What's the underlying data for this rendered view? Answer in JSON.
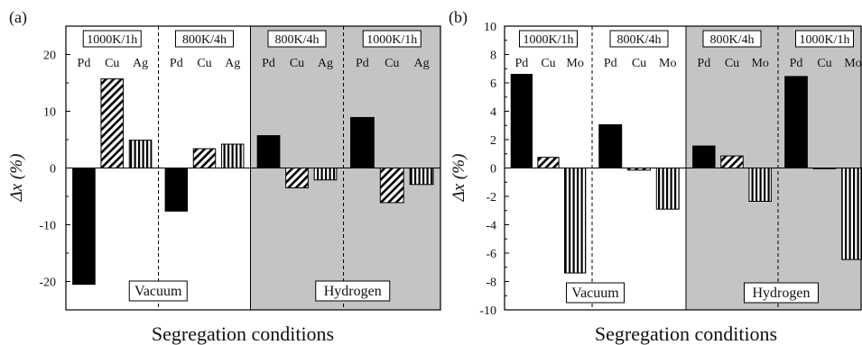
{
  "colors": {
    "hydrogen_shade": "#c4c4c4",
    "bar_fill": "#000000",
    "frame": "#000000"
  },
  "chart_data": [
    {
      "panel": "(a)",
      "type": "bar",
      "xlabel": "Segregation conditions",
      "ylabel": "Δx (%)",
      "ylim": [
        -25,
        25
      ],
      "yticks": [
        -20,
        -10,
        0,
        10,
        20
      ],
      "patterns": {
        "Pd": "solid",
        "Cu": "diagonal-hatch",
        "Ag": "vertical-hatch"
      },
      "groups": [
        {
          "condition": "1000K/1h",
          "environment": "Vacuum",
          "elements": [
            "Pd",
            "Cu",
            "Ag"
          ],
          "values": [
            -20.5,
            15.7,
            4.9
          ]
        },
        {
          "condition": "800K/4h",
          "environment": "Vacuum",
          "elements": [
            "Pd",
            "Cu",
            "Ag"
          ],
          "values": [
            -7.6,
            3.4,
            4.2
          ]
        },
        {
          "condition": "800K/4h",
          "environment": "Hydrogen",
          "elements": [
            "Pd",
            "Cu",
            "Ag"
          ],
          "values": [
            5.7,
            -3.5,
            -2.1
          ]
        },
        {
          "condition": "1000K/1h",
          "environment": "Hydrogen",
          "elements": [
            "Pd",
            "Cu",
            "Ag"
          ],
          "values": [
            8.9,
            -6.1,
            -2.9
          ]
        }
      ],
      "region_labels": [
        "Vacuum",
        "Hydrogen"
      ]
    },
    {
      "panel": "(b)",
      "type": "bar",
      "xlabel": "Segregation conditions",
      "ylabel": "Δx (%)",
      "ylim": [
        -10,
        10
      ],
      "yticks": [
        -10,
        -8,
        -6,
        -4,
        -2,
        0,
        2,
        4,
        6,
        8,
        10
      ],
      "patterns": {
        "Pd": "solid",
        "Cu": "diagonal-hatch",
        "Mo": "vertical-hatch"
      },
      "groups": [
        {
          "condition": "1000K/1h",
          "environment": "Vacuum",
          "elements": [
            "Pd",
            "Cu",
            "Mo"
          ],
          "values": [
            6.6,
            0.75,
            -7.4
          ]
        },
        {
          "condition": "800K/4h",
          "environment": "Vacuum",
          "elements": [
            "Pd",
            "Cu",
            "Mo"
          ],
          "values": [
            3.05,
            -0.15,
            -2.9
          ]
        },
        {
          "condition": "800K/4h",
          "environment": "Hydrogen",
          "elements": [
            "Pd",
            "Cu",
            "Mo"
          ],
          "values": [
            1.55,
            0.85,
            -2.35
          ]
        },
        {
          "condition": "1000K/1h",
          "environment": "Hydrogen",
          "elements": [
            "Pd",
            "Cu",
            "Mo"
          ],
          "values": [
            6.45,
            -0.05,
            -6.45
          ]
        }
      ],
      "region_labels": [
        "Vacuum",
        "Hydrogen"
      ]
    }
  ]
}
